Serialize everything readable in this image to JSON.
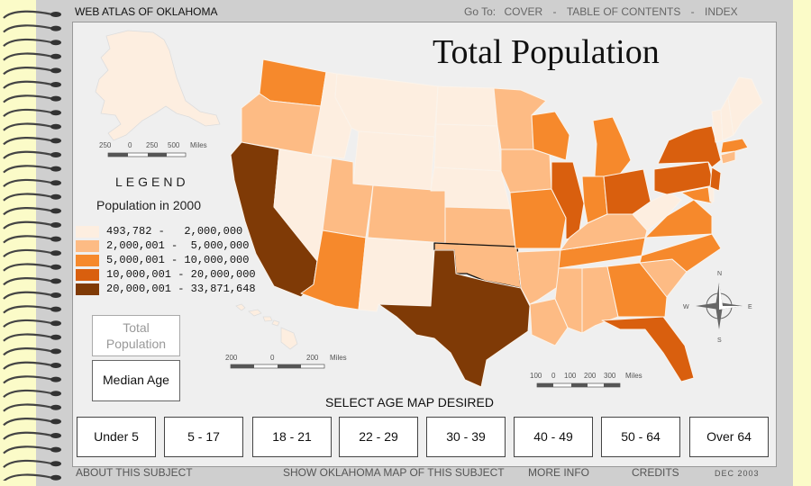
{
  "header": {
    "site_title": "WEB ATLAS OF OKLAHOMA",
    "goto_label": "Go To:",
    "nav": [
      "COVER",
      "TABLE OF CONTENTS",
      "INDEX"
    ]
  },
  "map": {
    "title": "Total Population",
    "scale_alaska": [
      "250",
      "0",
      "250",
      "500",
      "Miles"
    ],
    "scale_hawaii": [
      "200",
      "0",
      "200",
      "Miles"
    ],
    "scale_main": [
      "100",
      "0",
      "100",
      "200",
      "300",
      "Miles"
    ],
    "compass": [
      "N",
      "E",
      "S",
      "W"
    ]
  },
  "legend": {
    "title": "LEGEND",
    "subtitle": "Population in 2000",
    "classes": [
      {
        "label": "493,782 -   2,000,000",
        "color": "#fdeee0"
      },
      {
        "label": "2,000,001 -  5,000,000",
        "color": "#fdbb84"
      },
      {
        "label": "5,000,001 - 10,000,000",
        "color": "#f6892c"
      },
      {
        "label": "10,000,001 - 20,000,000",
        "color": "#d95f0e"
      },
      {
        "label": "20,000,001 - 33,871,648",
        "color": "#7f3a06"
      }
    ]
  },
  "buttons": {
    "total_population": "Total Population",
    "median_age": "Median Age"
  },
  "age_select": {
    "label": "SELECT AGE MAP DESIRED",
    "options": [
      "Under 5",
      "5 - 17",
      "18 - 21",
      "22 - 29",
      "30 - 39",
      "40 - 49",
      "50 - 64",
      "Over 64"
    ]
  },
  "footer": {
    "about": "ABOUT THIS SUBJECT",
    "show_ok": "SHOW OKLAHOMA MAP OF THIS SUBJECT",
    "more": "MORE INFO",
    "credits": "CREDITS",
    "date": "DEC 2003"
  },
  "colors": {
    "c1": "#fdeee0",
    "c2": "#fdbb84",
    "c3": "#f6892c",
    "c4": "#d95f0e",
    "c5": "#7f3a06"
  }
}
